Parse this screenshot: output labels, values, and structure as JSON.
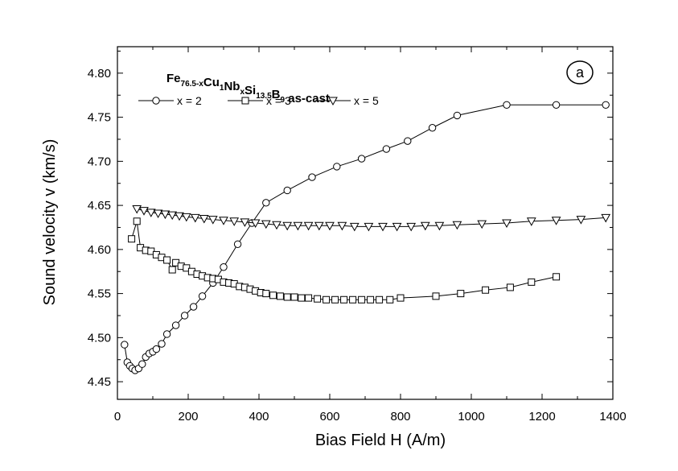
{
  "chart_data": {
    "type": "line",
    "title": "",
    "xlabel": "Bias Field H (A/m)",
    "ylabel": "Sound velocity v (km/s)",
    "xlim": [
      0,
      1400
    ],
    "ylim": [
      4.43,
      4.83
    ],
    "xticks": [
      0,
      200,
      400,
      600,
      800,
      1000,
      1200,
      1400
    ],
    "yticks": [
      4.45,
      4.5,
      4.55,
      4.6,
      4.65,
      4.7,
      4.75,
      4.8
    ],
    "xtick_labels": [
      "0",
      "200",
      "400",
      "600",
      "800",
      "1000",
      "1200",
      "1400"
    ],
    "ytick_labels": [
      "4.45",
      "4.50",
      "4.55",
      "4.60",
      "4.65",
      "4.70",
      "4.75",
      "4.80"
    ],
    "grid": false,
    "legend_position": "top-left",
    "panel_label": "a",
    "annotation": {
      "parts": [
        {
          "t": "Fe",
          "sub": false
        },
        {
          "t": "76.5-x",
          "sub": true
        },
        {
          "t": "Cu",
          "sub": false
        },
        {
          "t": "1",
          "sub": true
        },
        {
          "t": "Nb",
          "sub": false
        },
        {
          "t": "x",
          "sub": true
        },
        {
          "t": "Si",
          "sub": false
        },
        {
          "t": "13.5",
          "sub": true
        },
        {
          "t": "B",
          "sub": false
        },
        {
          "t": "9",
          "sub": true
        },
        {
          "t": " as-cast",
          "sub": false
        }
      ]
    },
    "series": [
      {
        "name": "x = 2",
        "marker": "circle",
        "x": [
          20,
          28,
          35,
          42,
          50,
          60,
          70,
          80,
          90,
          100,
          110,
          125,
          140,
          165,
          190,
          215,
          240,
          270,
          300,
          340,
          380,
          420,
          480,
          550,
          620,
          690,
          760,
          820,
          890,
          960,
          1100,
          1240,
          1380
        ],
        "y": [
          4.492,
          4.472,
          4.468,
          4.465,
          4.463,
          4.465,
          4.47,
          4.478,
          4.482,
          4.484,
          4.487,
          4.493,
          4.504,
          4.514,
          4.525,
          4.535,
          4.547,
          4.562,
          4.58,
          4.606,
          4.63,
          4.653,
          4.667,
          4.682,
          4.694,
          4.703,
          4.714,
          4.723,
          4.738,
          4.752,
          4.764,
          4.764,
          4.764
        ]
      },
      {
        "name": "x = 3",
        "marker": "square",
        "x": [
          40,
          55,
          65,
          80,
          95,
          110,
          125,
          140,
          155,
          165,
          180,
          195,
          210,
          225,
          240,
          255,
          270,
          285,
          300,
          315,
          330,
          345,
          360,
          375,
          390,
          405,
          420,
          440,
          460,
          480,
          500,
          520,
          540,
          565,
          590,
          615,
          640,
          665,
          690,
          715,
          740,
          770,
          800,
          900,
          970,
          1040,
          1110,
          1170,
          1240
        ],
        "y": [
          4.612,
          4.632,
          4.602,
          4.599,
          4.598,
          4.594,
          4.591,
          4.588,
          4.577,
          4.585,
          4.581,
          4.579,
          4.575,
          4.572,
          4.57,
          4.568,
          4.567,
          4.566,
          4.563,
          4.562,
          4.561,
          4.558,
          4.557,
          4.555,
          4.553,
          4.551,
          4.55,
          4.548,
          4.547,
          4.546,
          4.546,
          4.545,
          4.545,
          4.544,
          4.543,
          4.543,
          4.543,
          4.543,
          4.543,
          4.543,
          4.543,
          4.543,
          4.545,
          4.547,
          4.55,
          4.554,
          4.557,
          4.563,
          4.569
        ]
      },
      {
        "name": "x = 5",
        "marker": "triangle-down",
        "x": [
          55,
          75,
          95,
          115,
          135,
          155,
          175,
          195,
          220,
          245,
          270,
          300,
          330,
          360,
          390,
          420,
          450,
          480,
          510,
          540,
          570,
          600,
          635,
          670,
          710,
          750,
          790,
          830,
          870,
          910,
          960,
          1030,
          1100,
          1170,
          1240,
          1310,
          1380
        ],
        "y": [
          4.646,
          4.644,
          4.642,
          4.641,
          4.64,
          4.639,
          4.638,
          4.637,
          4.636,
          4.635,
          4.634,
          4.633,
          4.632,
          4.631,
          4.63,
          4.629,
          4.628,
          4.627,
          4.627,
          4.627,
          4.627,
          4.627,
          4.627,
          4.626,
          4.626,
          4.626,
          4.626,
          4.626,
          4.627,
          4.627,
          4.628,
          4.629,
          4.63,
          4.632,
          4.633,
          4.634,
          4.636
        ]
      }
    ]
  }
}
